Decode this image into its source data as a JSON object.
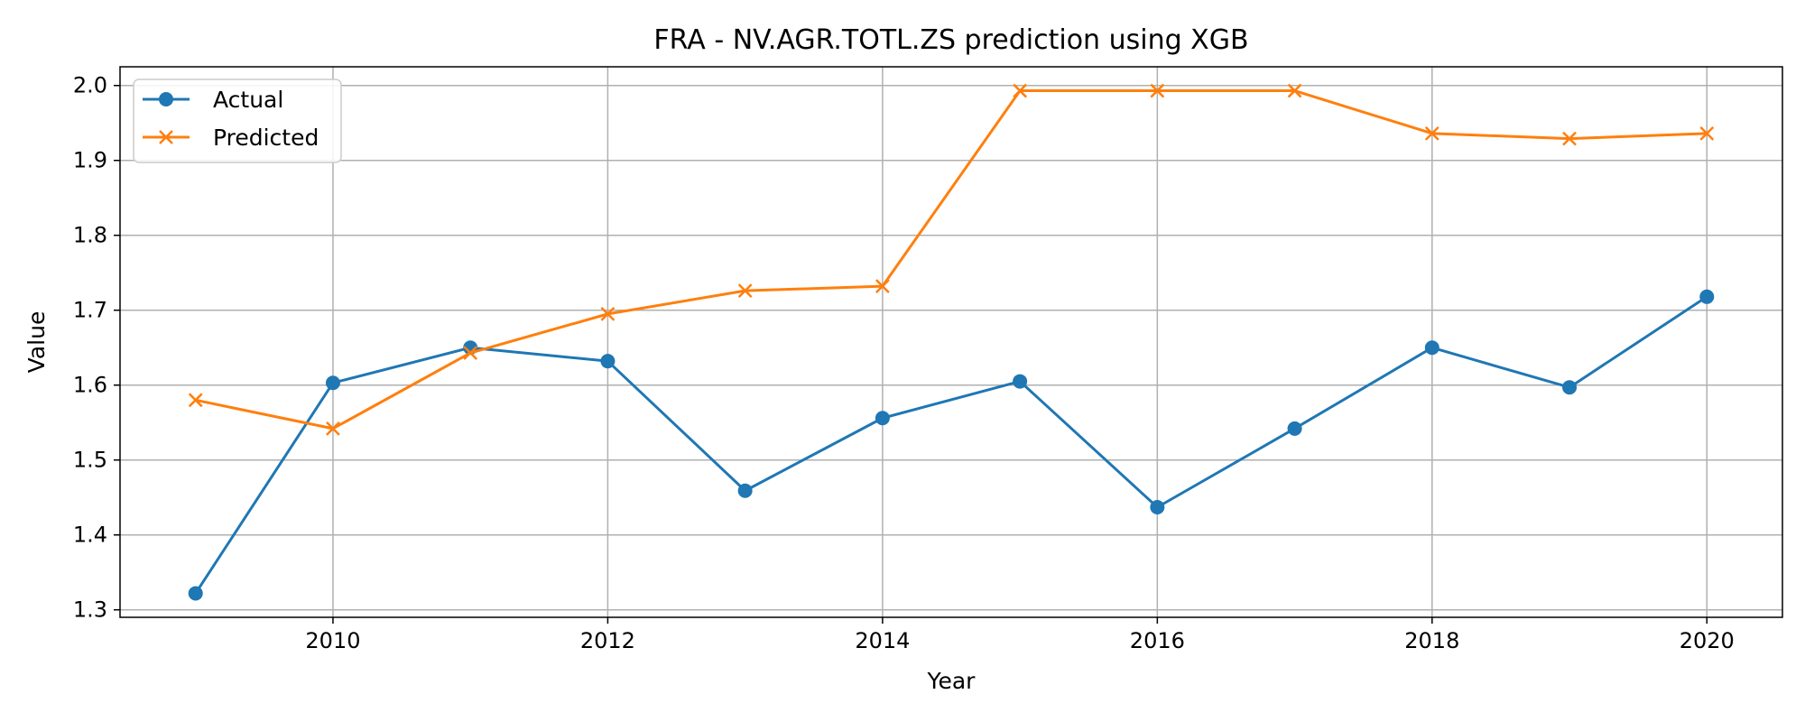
{
  "chart_data": {
    "type": "line",
    "title": "FRA - NV.AGR.TOTL.ZS prediction using XGB",
    "xlabel": "Year",
    "ylabel": "Value",
    "xlim": [
      2008.45,
      2020.55
    ],
    "ylim": [
      1.29,
      2.025
    ],
    "x_ticks": [
      2010,
      2012,
      2014,
      2016,
      2018,
      2020
    ],
    "y_ticks": [
      1.3,
      1.4,
      1.5,
      1.6,
      1.7,
      1.8,
      1.9,
      2.0
    ],
    "y_tick_labels": [
      "1.3",
      "1.4",
      "1.5",
      "1.6",
      "1.7",
      "1.8",
      "1.9",
      "2.0"
    ],
    "grid": true,
    "legend_position": "top-left",
    "x": [
      2009,
      2010,
      2011,
      2012,
      2013,
      2014,
      2015,
      2016,
      2017,
      2018,
      2019,
      2020
    ],
    "series": [
      {
        "name": "Actual",
        "marker": "circle",
        "color": "#1f77b4",
        "values": [
          1.322,
          1.603,
          1.65,
          1.632,
          1.459,
          1.556,
          1.605,
          1.437,
          1.542,
          1.65,
          1.597,
          1.718
        ]
      },
      {
        "name": "Predicted",
        "marker": "x",
        "color": "#ff7f0e",
        "values": [
          1.58,
          1.542,
          1.643,
          1.695,
          1.726,
          1.732,
          1.993,
          1.993,
          1.993,
          1.936,
          1.929,
          1.936
        ]
      }
    ]
  }
}
